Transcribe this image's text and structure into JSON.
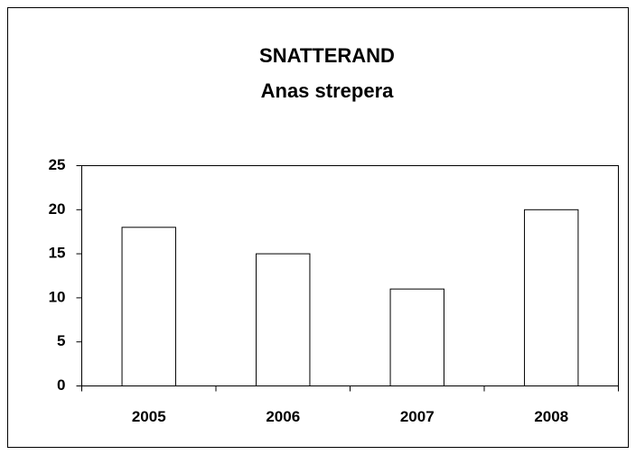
{
  "chart_data": {
    "type": "bar",
    "title": "SNATTERAND",
    "subtitle": "Anas strepera",
    "categories": [
      "2005",
      "2006",
      "2007",
      "2008"
    ],
    "values": [
      18,
      15,
      11,
      20
    ],
    "color": "#ffffff",
    "ylim": [
      0,
      25
    ],
    "yticks": [
      0,
      5,
      10,
      15,
      20,
      25
    ],
    "grid": false
  }
}
